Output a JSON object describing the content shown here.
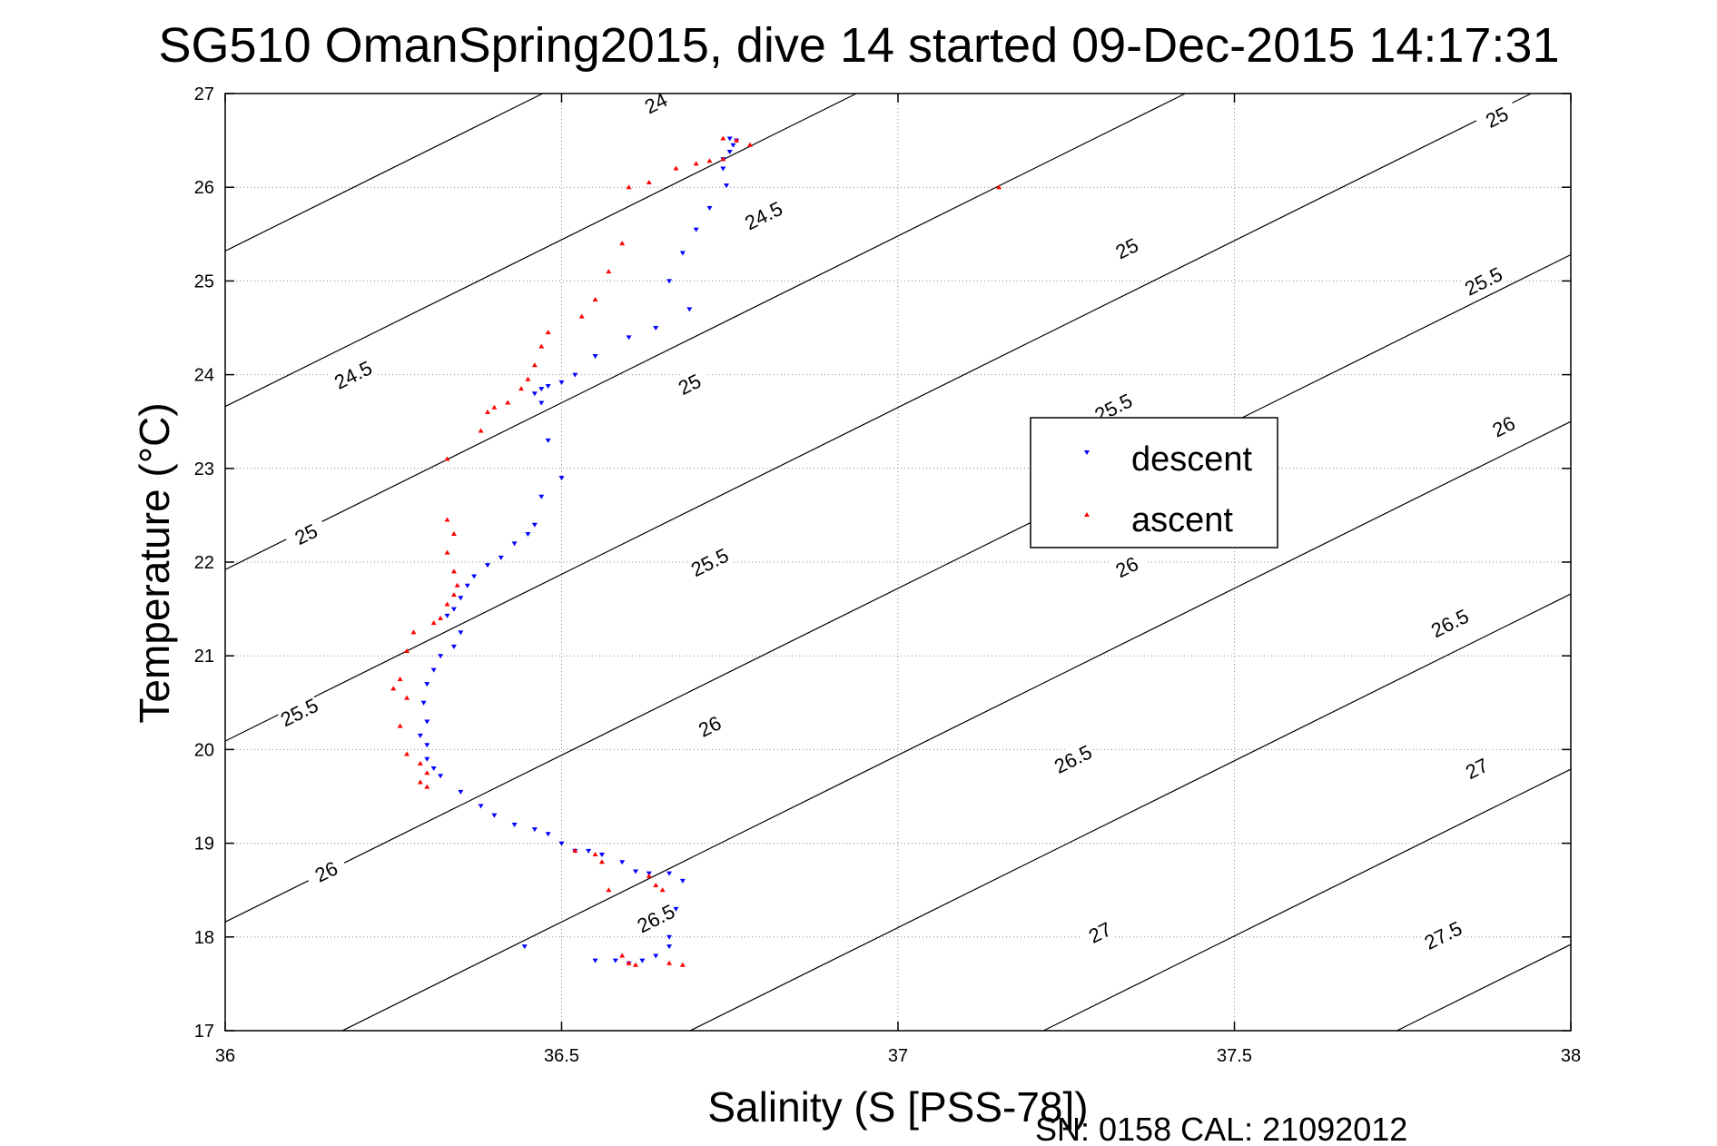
{
  "chart_data": {
    "type": "scatter",
    "title": "SG510 OmanSpring2015, dive 14 started 09-Dec-2015 14:17:31",
    "xlabel": "Salinity (S [PSS-78])",
    "ylabel": "Temperature (°C)",
    "xlim": [
      36,
      38
    ],
    "ylim": [
      17,
      27
    ],
    "x_ticks": [
      36,
      36.5,
      37,
      37.5,
      38
    ],
    "x_tick_labels": [
      "36",
      "36.5",
      "37",
      "37.5",
      "38"
    ],
    "y_ticks": [
      17,
      18,
      19,
      20,
      21,
      22,
      23,
      24,
      25,
      26,
      27
    ],
    "y_tick_labels": [
      "17",
      "18",
      "19",
      "20",
      "21",
      "22",
      "23",
      "24",
      "25",
      "26",
      "27"
    ],
    "grid": true,
    "legend_position": "right",
    "footer": "SN: 0158  CAL: 21092012",
    "series": [
      {
        "name": "descent",
        "marker": "triangle-down",
        "color": "#0000ff",
        "points": [
          [
            36.75,
            26.52
          ],
          [
            36.76,
            26.5
          ],
          [
            36.755,
            26.45
          ],
          [
            36.75,
            26.38
          ],
          [
            36.74,
            26.3
          ],
          [
            36.74,
            26.2
          ],
          [
            36.745,
            26.02
          ],
          [
            36.72,
            25.78
          ],
          [
            36.7,
            25.55
          ],
          [
            36.68,
            25.3
          ],
          [
            36.66,
            25.0
          ],
          [
            36.69,
            24.7
          ],
          [
            36.64,
            24.5
          ],
          [
            36.6,
            24.4
          ],
          [
            36.55,
            24.2
          ],
          [
            36.52,
            24.0
          ],
          [
            36.5,
            23.92
          ],
          [
            36.48,
            23.88
          ],
          [
            36.47,
            23.85
          ],
          [
            36.46,
            23.8
          ],
          [
            36.47,
            23.7
          ],
          [
            36.48,
            23.3
          ],
          [
            36.5,
            22.9
          ],
          [
            36.47,
            22.7
          ],
          [
            36.46,
            22.4
          ],
          [
            36.45,
            22.3
          ],
          [
            36.43,
            22.2
          ],
          [
            36.41,
            22.05
          ],
          [
            36.39,
            21.97
          ],
          [
            36.37,
            21.85
          ],
          [
            36.36,
            21.75
          ],
          [
            36.35,
            21.62
          ],
          [
            36.34,
            21.5
          ],
          [
            36.33,
            21.43
          ],
          [
            36.35,
            21.25
          ],
          [
            36.34,
            21.1
          ],
          [
            36.32,
            21.0
          ],
          [
            36.31,
            20.85
          ],
          [
            36.3,
            20.7
          ],
          [
            36.295,
            20.5
          ],
          [
            36.3,
            20.3
          ],
          [
            36.29,
            20.15
          ],
          [
            36.3,
            20.05
          ],
          [
            36.3,
            19.9
          ],
          [
            36.31,
            19.8
          ],
          [
            36.32,
            19.72
          ],
          [
            36.35,
            19.55
          ],
          [
            36.38,
            19.4
          ],
          [
            36.4,
            19.3
          ],
          [
            36.43,
            19.2
          ],
          [
            36.46,
            19.15
          ],
          [
            36.48,
            19.1
          ],
          [
            36.5,
            19.0
          ],
          [
            36.52,
            18.92
          ],
          [
            36.54,
            18.92
          ],
          [
            36.56,
            18.88
          ],
          [
            36.59,
            18.8
          ],
          [
            36.61,
            18.7
          ],
          [
            36.63,
            18.68
          ],
          [
            36.66,
            18.68
          ],
          [
            36.68,
            18.6
          ],
          [
            36.67,
            18.3
          ],
          [
            36.66,
            18.0
          ],
          [
            36.66,
            17.9
          ],
          [
            36.64,
            17.8
          ],
          [
            36.62,
            17.75
          ],
          [
            36.6,
            17.72
          ],
          [
            36.58,
            17.75
          ],
          [
            36.55,
            17.75
          ],
          [
            36.445,
            17.9
          ]
        ]
      },
      {
        "name": "ascent",
        "marker": "triangle-up",
        "color": "#ff0000",
        "points": [
          [
            36.74,
            26.52
          ],
          [
            36.76,
            26.5
          ],
          [
            36.78,
            26.45
          ],
          [
            36.74,
            26.3
          ],
          [
            36.72,
            26.28
          ],
          [
            36.7,
            26.25
          ],
          [
            36.67,
            26.2
          ],
          [
            36.63,
            26.05
          ],
          [
            36.6,
            26.0
          ],
          [
            36.59,
            25.4
          ],
          [
            36.57,
            25.1
          ],
          [
            36.55,
            24.8
          ],
          [
            36.53,
            24.62
          ],
          [
            36.48,
            24.45
          ],
          [
            36.47,
            24.3
          ],
          [
            36.46,
            24.1
          ],
          [
            36.45,
            23.95
          ],
          [
            36.44,
            23.85
          ],
          [
            36.42,
            23.7
          ],
          [
            36.4,
            23.65
          ],
          [
            36.39,
            23.6
          ],
          [
            36.38,
            23.4
          ],
          [
            36.33,
            23.1
          ],
          [
            36.33,
            22.45
          ],
          [
            36.34,
            22.3
          ],
          [
            36.33,
            22.1
          ],
          [
            36.34,
            21.9
          ],
          [
            36.345,
            21.75
          ],
          [
            36.34,
            21.65
          ],
          [
            36.33,
            21.55
          ],
          [
            36.32,
            21.4
          ],
          [
            36.31,
            21.35
          ],
          [
            36.28,
            21.25
          ],
          [
            36.27,
            21.05
          ],
          [
            36.26,
            20.75
          ],
          [
            36.25,
            20.65
          ],
          [
            36.27,
            20.55
          ],
          [
            36.26,
            20.25
          ],
          [
            36.27,
            19.95
          ],
          [
            36.29,
            19.85
          ],
          [
            36.3,
            19.75
          ],
          [
            36.29,
            19.65
          ],
          [
            36.3,
            19.6
          ],
          [
            36.52,
            18.92
          ],
          [
            36.55,
            18.88
          ],
          [
            36.56,
            18.8
          ],
          [
            36.57,
            18.5
          ],
          [
            36.63,
            18.65
          ],
          [
            36.64,
            18.55
          ],
          [
            36.65,
            18.5
          ],
          [
            36.66,
            17.72
          ],
          [
            36.68,
            17.7
          ],
          [
            36.6,
            17.72
          ],
          [
            36.61,
            17.7
          ],
          [
            36.59,
            17.8
          ],
          [
            37.15,
            26.0
          ]
        ]
      }
    ],
    "contour_labels": [
      {
        "text": "24",
        "s": 36.64,
        "t": 26.9
      },
      {
        "text": "24.5",
        "s": 36.19,
        "t": 24.0
      },
      {
        "text": "24.5",
        "s": 36.8,
        "t": 25.7
      },
      {
        "text": "25",
        "s": 36.12,
        "t": 22.3
      },
      {
        "text": "25",
        "s": 36.69,
        "t": 23.9
      },
      {
        "text": "25",
        "s": 37.34,
        "t": 25.35
      },
      {
        "text": "25",
        "s": 37.89,
        "t": 26.75
      },
      {
        "text": "25.5",
        "s": 36.11,
        "t": 20.4
      },
      {
        "text": "25.5",
        "s": 36.72,
        "t": 22.0
      },
      {
        "text": "25.5",
        "s": 37.32,
        "t": 23.65
      },
      {
        "text": "25.5",
        "s": 37.87,
        "t": 25.0
      },
      {
        "text": "26",
        "s": 36.15,
        "t": 18.7
      },
      {
        "text": "26",
        "s": 36.72,
        "t": 20.25
      },
      {
        "text": "26",
        "s": 37.34,
        "t": 21.95
      },
      {
        "text": "26",
        "s": 37.9,
        "t": 23.45
      },
      {
        "text": "26.5",
        "s": 36.64,
        "t": 18.2
      },
      {
        "text": "26.5",
        "s": 37.26,
        "t": 19.9
      },
      {
        "text": "26.5",
        "s": 37.82,
        "t": 21.35
      },
      {
        "text": "27",
        "s": 37.3,
        "t": 18.05
      },
      {
        "text": "27",
        "s": 37.86,
        "t": 19.8
      },
      {
        "text": "27.5",
        "s": 37.81,
        "t": 18.02
      }
    ]
  }
}
